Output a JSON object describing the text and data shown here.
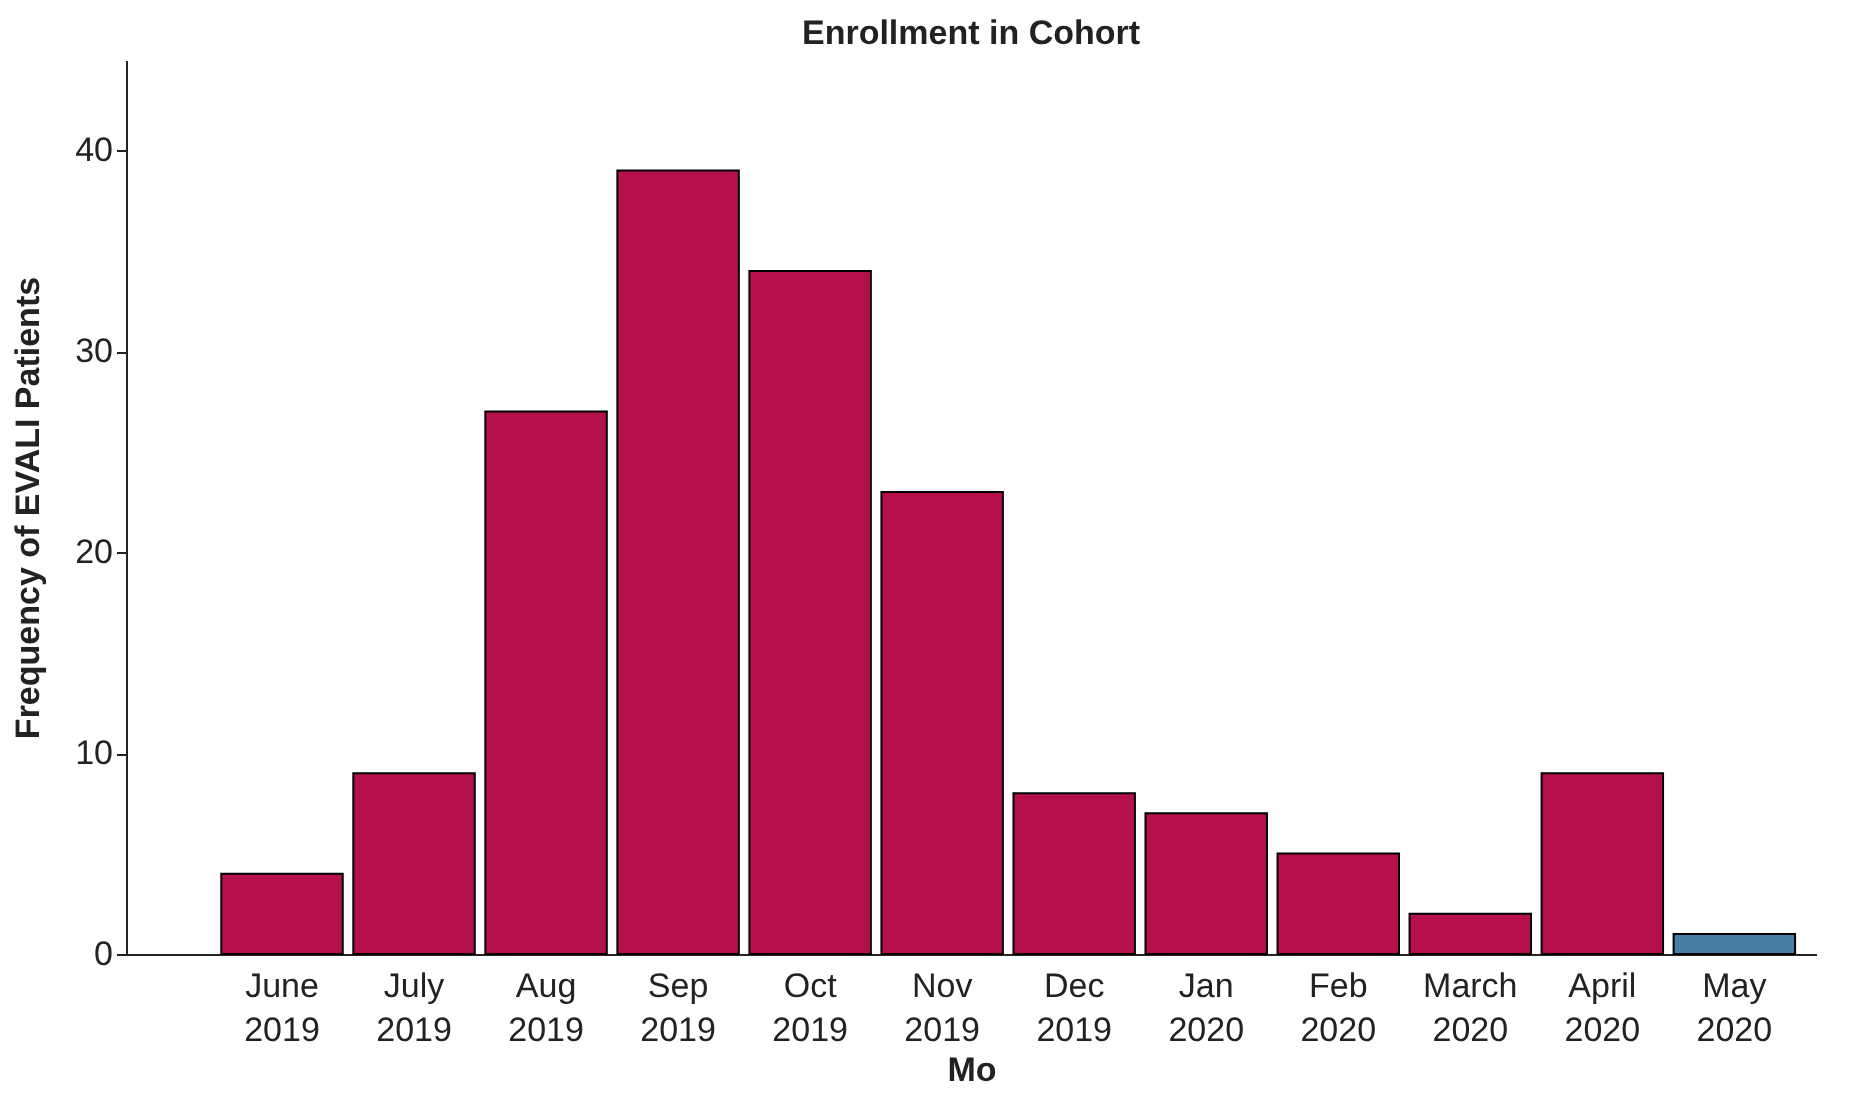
{
  "chart_data": {
    "type": "bar",
    "title": "Enrollment in Cohort",
    "xlabel": "Mo",
    "ylabel": "Frequency of EVALI Patients",
    "categories": [
      "June 2019",
      "July 2019",
      "Aug 2019",
      "Sep 2019",
      "Oct 2019",
      "Nov 2019",
      "Dec 2019",
      "Jan 2020",
      "Feb 2020",
      "March 2020",
      "April 2020",
      "May 2020"
    ],
    "values": [
      4,
      9,
      27,
      39,
      34,
      23,
      8,
      7,
      5,
      2,
      9,
      1
    ],
    "colors": [
      "#b5104c",
      "#b5104c",
      "#b5104c",
      "#b5104c",
      "#b5104c",
      "#b5104c",
      "#b5104c",
      "#b5104c",
      "#b5104c",
      "#b5104c",
      "#b5104c",
      "#4a7fa5"
    ],
    "ylim": [
      0,
      44.5
    ],
    "yticks": [
      0,
      10,
      20,
      30,
      40
    ],
    "grid": false
  }
}
